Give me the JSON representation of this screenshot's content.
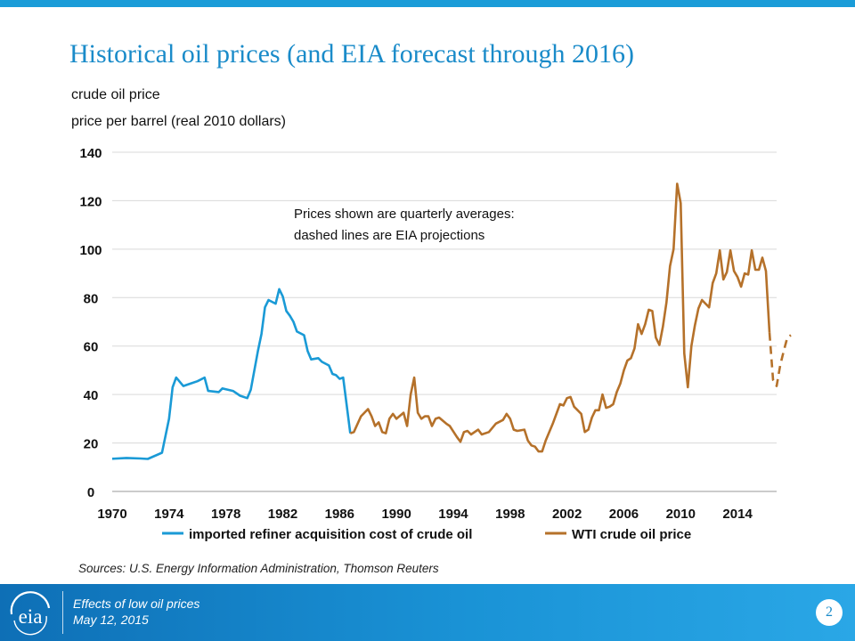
{
  "slide": {
    "title": "Historical oil prices (and EIA forecast through 2016)",
    "sources": "Sources: U.S. Energy Information Administration, Thomson Reuters",
    "accent_color": "#1a8bc9"
  },
  "footer": {
    "line1": "Effects of low oil prices",
    "line2": "May 12, 2015",
    "page_number": "2",
    "logo_text": "eia",
    "logo_icon": "eia-logo-icon"
  },
  "chart_data": {
    "type": "line",
    "title": "crude oil price",
    "ylabel": "price per barrel (real 2010 dollars)",
    "xlabel": "",
    "xlim": [
      1970,
      2016.75
    ],
    "ylim": [
      0,
      140
    ],
    "y_ticks": [
      0,
      20,
      40,
      60,
      80,
      100,
      120,
      140
    ],
    "x_ticks": [
      1970,
      1974,
      1978,
      1982,
      1986,
      1990,
      1994,
      1998,
      2002,
      2006,
      2010,
      2014
    ],
    "grid": true,
    "legend_position": "bottom",
    "annotation": [
      "Prices shown are quarterly averages:",
      "dashed lines are EIA projections"
    ],
    "series": [
      {
        "name": "imported refiner acquisition cost of crude oil",
        "color": "#1a9ad6",
        "style": "solid",
        "points": [
          [
            1970,
            13.5
          ],
          [
            1971,
            13.8
          ],
          [
            1972,
            13.6
          ],
          [
            1972.5,
            13.4
          ],
          [
            1973.5,
            16
          ],
          [
            1974,
            30
          ],
          [
            1974.25,
            43
          ],
          [
            1974.5,
            47
          ],
          [
            1975,
            43.5
          ],
          [
            1975.5,
            44.5
          ],
          [
            1976,
            45.5
          ],
          [
            1976.5,
            47
          ],
          [
            1976.75,
            41.5
          ],
          [
            1977.5,
            41
          ],
          [
            1977.75,
            42.5
          ],
          [
            1978.5,
            41.5
          ],
          [
            1979,
            39.5
          ],
          [
            1979.5,
            38.5
          ],
          [
            1979.75,
            42
          ],
          [
            1980.25,
            58
          ],
          [
            1980.5,
            65
          ],
          [
            1980.75,
            76
          ],
          [
            1981,
            79
          ],
          [
            1981.5,
            77.5
          ],
          [
            1981.75,
            83.5
          ],
          [
            1982,
            80.5
          ],
          [
            1982.25,
            74.5
          ],
          [
            1982.5,
            72.5
          ],
          [
            1982.75,
            70
          ],
          [
            1983,
            66
          ],
          [
            1983.5,
            64.5
          ],
          [
            1983.75,
            58
          ],
          [
            1984,
            54.5
          ],
          [
            1984.5,
            55
          ],
          [
            1984.75,
            53.5
          ],
          [
            1985.25,
            52
          ],
          [
            1985.5,
            48.5
          ],
          [
            1985.75,
            48
          ],
          [
            1986,
            46.5
          ],
          [
            1986.25,
            47
          ],
          [
            1986.75,
            24
          ]
        ]
      },
      {
        "name": "WTI crude oil price",
        "color": "#b5712a",
        "style": "solid",
        "points": [
          [
            1986.75,
            24
          ],
          [
            1987,
            24.5
          ],
          [
            1987.5,
            31
          ],
          [
            1988,
            34
          ],
          [
            1988.25,
            31
          ],
          [
            1988.5,
            27
          ],
          [
            1988.75,
            28.5
          ],
          [
            1989,
            24.5
          ],
          [
            1989.25,
            24
          ],
          [
            1989.5,
            30
          ],
          [
            1989.75,
            32
          ],
          [
            1990,
            30
          ],
          [
            1990.5,
            32.5
          ],
          [
            1990.75,
            27
          ],
          [
            1991,
            40
          ],
          [
            1991.25,
            47
          ],
          [
            1991.5,
            32.5
          ],
          [
            1991.75,
            30
          ],
          [
            1992,
            31
          ],
          [
            1992.25,
            31
          ],
          [
            1992.5,
            27
          ],
          [
            1992.75,
            30
          ],
          [
            1993,
            30.5
          ],
          [
            1993.5,
            28
          ],
          [
            1993.75,
            27
          ],
          [
            1994.25,
            22.5
          ],
          [
            1994.5,
            20.5
          ],
          [
            1994.75,
            24.5
          ],
          [
            1995,
            25
          ],
          [
            1995.25,
            23.5
          ],
          [
            1995.75,
            25.5
          ],
          [
            1996,
            23.5
          ],
          [
            1996.5,
            24.5
          ],
          [
            1997,
            28
          ],
          [
            1997.5,
            29.5
          ],
          [
            1997.75,
            32
          ],
          [
            1998,
            30
          ],
          [
            1998.25,
            25.5
          ],
          [
            1998.5,
            25
          ],
          [
            1999,
            25.5
          ],
          [
            1999.25,
            21
          ],
          [
            1999.5,
            19
          ],
          [
            1999.75,
            18.5
          ],
          [
            2000,
            16.5
          ],
          [
            2000.25,
            16.5
          ],
          [
            2000.5,
            21
          ],
          [
            2001,
            28
          ],
          [
            2001.5,
            36
          ],
          [
            2001.75,
            35.5
          ],
          [
            2002,
            38.5
          ],
          [
            2002.25,
            39
          ],
          [
            2002.5,
            35
          ],
          [
            2002.75,
            33.5
          ],
          [
            2003,
            32
          ],
          [
            2003.25,
            24.5
          ],
          [
            2003.5,
            25.5
          ],
          [
            2003.75,
            30.5
          ],
          [
            2004,
            33.5
          ],
          [
            2004.25,
            33.5
          ],
          [
            2004.5,
            40
          ],
          [
            2004.75,
            34.5
          ],
          [
            2005,
            35
          ],
          [
            2005.25,
            36
          ],
          [
            2005.5,
            41
          ],
          [
            2005.75,
            44.5
          ],
          [
            2006,
            50
          ],
          [
            2006.25,
            54
          ],
          [
            2006.5,
            55
          ],
          [
            2006.75,
            59
          ],
          [
            2007,
            69
          ],
          [
            2007.25,
            65
          ],
          [
            2007.5,
            69
          ],
          [
            2007.75,
            75
          ],
          [
            2008,
            74.5
          ],
          [
            2008.25,
            63.5
          ],
          [
            2008.5,
            60.5
          ],
          [
            2008.75,
            68
          ],
          [
            2009,
            78
          ],
          [
            2009.25,
            93
          ],
          [
            2009.5,
            100
          ],
          [
            2009.75,
            127
          ],
          [
            2010,
            119
          ],
          [
            2010.25,
            57
          ],
          [
            2010.5,
            43
          ],
          [
            2010.75,
            60
          ],
          [
            2011,
            68.5
          ],
          [
            2011.25,
            75.5
          ],
          [
            2011.5,
            79
          ],
          [
            2011.75,
            77.5
          ],
          [
            2012,
            76
          ],
          [
            2012.25,
            86
          ],
          [
            2012.5,
            90
          ],
          [
            2012.75,
            99.5
          ],
          [
            2013,
            87.5
          ],
          [
            2013.25,
            90.5
          ],
          [
            2013.5,
            99.5
          ],
          [
            2013.75,
            91
          ],
          [
            2014,
            88.5
          ],
          [
            2014.25,
            84.5
          ],
          [
            2014.5,
            90
          ],
          [
            2014.75,
            89.5
          ],
          [
            2015,
            99.5
          ],
          [
            2015.25,
            91.5
          ],
          [
            2015.5,
            91.5
          ],
          [
            2015.75,
            96.5
          ],
          [
            2016,
            91
          ],
          [
            2016.25,
            65.5
          ]
        ]
      },
      {
        "name": "",
        "color": "#b5712a",
        "style": "dashed",
        "points": [
          [
            2016.25,
            65.5
          ],
          [
            2016.5,
            46
          ],
          [
            2016.75,
            43.5
          ],
          [
            2017,
            52
          ],
          [
            2017.25,
            58
          ],
          [
            2017.5,
            63.5
          ],
          [
            2017.75,
            64.5
          ]
        ]
      }
    ],
    "legend": [
      {
        "label": "imported refiner acquisition cost of crude oil",
        "color": "#1a9ad6"
      },
      {
        "label": "WTI crude oil price",
        "color": "#b5712a"
      }
    ]
  }
}
